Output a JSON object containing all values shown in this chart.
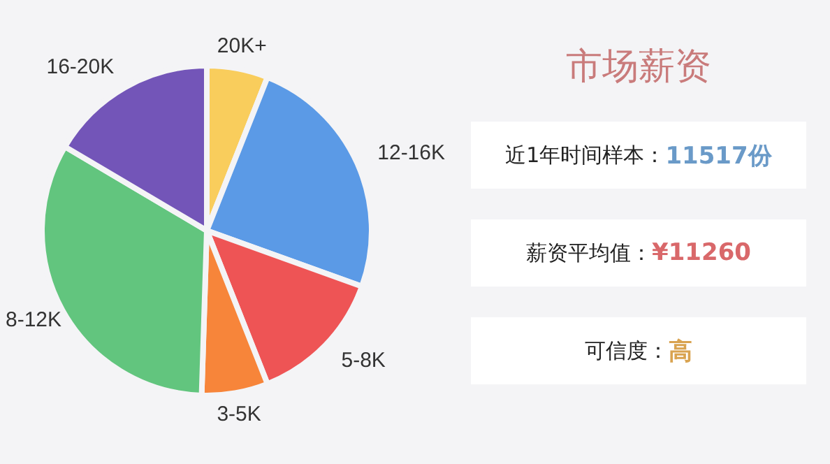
{
  "chart_data": {
    "type": "pie",
    "title": "市场薪资",
    "categories": [
      "20K+",
      "12-16K",
      "5-8K",
      "3-5K",
      "8-12K",
      "16-20K"
    ],
    "values": [
      6,
      24.5,
      13.5,
      6.5,
      33,
      16.5
    ],
    "colors": [
      "#f9cd5c",
      "#5b9ae6",
      "#ee5455",
      "#f7853a",
      "#62c57e",
      "#7355b8"
    ],
    "legend": false,
    "annotations": [
      "近1年时间样本：11517份",
      "薪资平均值：¥11260",
      "可信度：高"
    ]
  }
}
